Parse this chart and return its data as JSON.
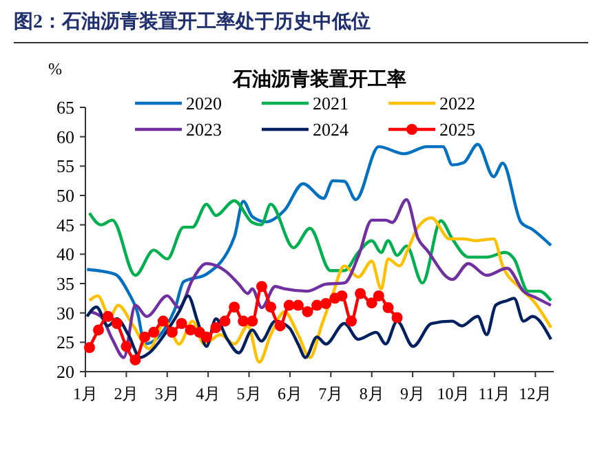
{
  "chart_data": {
    "type": "line",
    "title": "图2：石油沥青装置开工率处于历史中低位",
    "subtitle": "石油沥青装置开工率",
    "ylabel": "%",
    "xlim": [
      1,
      12.45
    ],
    "xticks": [
      {
        "value": 1,
        "label": "1月"
      },
      {
        "value": 2,
        "label": "2月"
      },
      {
        "value": 3,
        "label": "3月"
      },
      {
        "value": 4,
        "label": "4月"
      },
      {
        "value": 5,
        "label": "5月"
      },
      {
        "value": 6,
        "label": "6月"
      },
      {
        "value": 7,
        "label": "7月"
      },
      {
        "value": 8,
        "label": "8月"
      },
      {
        "value": 9,
        "label": "9月"
      },
      {
        "value": 10,
        "label": "10月"
      },
      {
        "value": 11,
        "label": "11月"
      },
      {
        "value": 12,
        "label": "12月"
      }
    ],
    "ylim": [
      20,
      65
    ],
    "yticks": [
      20,
      25,
      30,
      35,
      40,
      45,
      50,
      55,
      60,
      65
    ],
    "grid": false,
    "legend": "top",
    "line_style": "solid",
    "series": [
      {
        "name": "2020",
        "color": "#0070c0",
        "x": [
          1.04,
          1.72,
          2.05,
          2.28,
          2.45,
          3.18,
          3.4,
          3.96,
          4.64,
          4.86,
          5.08,
          5.42,
          5.87,
          6.32,
          6.82,
          7.05,
          7.33,
          7.61,
          8.17,
          8.79,
          9.35,
          9.74,
          9.97,
          10.25,
          10.59,
          10.98,
          11.2,
          11.65,
          11.93,
          12.38
        ],
        "values": [
          37.4,
          36.6,
          33.5,
          29.9,
          24.7,
          30.5,
          35.3,
          36.6,
          42.9,
          49,
          46.4,
          45.5,
          47.5,
          52,
          49.5,
          52.5,
          52.4,
          49.3,
          58.3,
          57.1,
          58.3,
          58.3,
          55.2,
          55.6,
          58.7,
          53.2,
          55.5,
          45.4,
          44.2,
          41.5
        ]
      },
      {
        "name": "2021",
        "color": "#00b050",
        "x": [
          1.1,
          1.38,
          1.66,
          2.22,
          2.67,
          3.0,
          3.4,
          3.62,
          3.96,
          4.19,
          4.64,
          5.08,
          5.3,
          5.53,
          6.09,
          6.49,
          6.99,
          7.33,
          7.67,
          8.0,
          8.23,
          8.4,
          8.62,
          8.85,
          9.24,
          9.69,
          9.97,
          10.36,
          10.81,
          11.26,
          11.48,
          11.82,
          12.1,
          12.38
        ],
        "values": [
          47,
          45,
          45.8,
          36.4,
          40.7,
          39.2,
          44.6,
          44.6,
          48.5,
          46.6,
          49.1,
          45.4,
          45,
          48.5,
          41.1,
          44.4,
          37.2,
          37.2,
          40.3,
          42.3,
          40.3,
          42.3,
          39.8,
          41.4,
          35.1,
          45.7,
          42.6,
          39.5,
          39.5,
          40.3,
          39.2,
          33.7,
          33.7,
          32.1
        ]
      },
      {
        "name": "2022",
        "color": "#ffc000",
        "x": [
          1.1,
          1.3,
          1.6,
          1.8,
          2.17,
          2.56,
          2.95,
          3.29,
          3.62,
          3.9,
          4.3,
          4.64,
          4.97,
          5.25,
          5.53,
          5.87,
          6.2,
          6.49,
          6.77,
          7.05,
          7.33,
          7.67,
          8.0,
          8.23,
          8.4,
          8.68,
          8.9,
          9.13,
          9.46,
          9.9,
          10.25,
          10.53,
          10.98,
          11.2,
          11.65,
          11.99,
          12.38
        ],
        "values": [
          32.1,
          32.9,
          29.4,
          31.3,
          27.8,
          23.9,
          28.6,
          24.7,
          28.6,
          24.7,
          26.3,
          24.7,
          27.8,
          21.6,
          26.3,
          30.2,
          26.3,
          22.4,
          27.8,
          33.3,
          38,
          36.1,
          38.8,
          34.1,
          39.2,
          38,
          41.1,
          44.6,
          46.2,
          42.6,
          42.6,
          42.3,
          42.6,
          38,
          34.1,
          31.7,
          27.5
        ]
      },
      {
        "name": "2023",
        "color": "#7030a0",
        "x": [
          1.1,
          1.38,
          1.66,
          1.94,
          2.22,
          2.5,
          3.0,
          3.29,
          3.62,
          3.96,
          4.41,
          4.75,
          4.97,
          5.08,
          5.31,
          5.64,
          5.87,
          6.43,
          6.88,
          7.33,
          7.67,
          8.0,
          8.34,
          8.5,
          8.85,
          9.13,
          9.35,
          9.97,
          10.36,
          10.81,
          11.31,
          11.71,
          12.04,
          12.38
        ],
        "values": [
          30.2,
          29.4,
          25.5,
          22.4,
          31.3,
          29.4,
          32.9,
          30.9,
          35.7,
          38.4,
          37.2,
          34.9,
          33.3,
          34.1,
          30.9,
          34.5,
          34.1,
          33.7,
          34.9,
          35.1,
          39.6,
          45.8,
          45.8,
          45.4,
          49.3,
          42.7,
          40.7,
          35.7,
          38.4,
          36.4,
          37.6,
          33.7,
          32.5,
          31.3
        ]
      },
      {
        "name": "2024",
        "color": "#002060",
        "x": [
          1.04,
          1.27,
          1.55,
          1.77,
          2.05,
          2.34,
          2.56,
          3.01,
          3.29,
          3.51,
          3.74,
          3.96,
          4.19,
          4.47,
          4.75,
          5.08,
          5.3,
          5.64,
          5.98,
          6.2,
          6.38,
          6.66,
          6.88,
          7.33,
          7.67,
          8.11,
          8.34,
          8.62,
          9.01,
          9.46,
          9.97,
          10.2,
          10.59,
          10.81,
          11.03,
          11.31,
          11.48,
          11.71,
          11.93,
          12.38
        ],
        "values": [
          29.4,
          31,
          27.8,
          29,
          26.3,
          22.4,
          23.2,
          27.1,
          30.2,
          32.9,
          28.6,
          24.3,
          29,
          25.5,
          23.2,
          27.1,
          25.2,
          28.6,
          27.5,
          24.7,
          22.4,
          25.9,
          24.7,
          28.2,
          25.5,
          26.7,
          24.7,
          28.6,
          24.3,
          28.2,
          28.6,
          27.8,
          29.4,
          26.3,
          31.3,
          32.1,
          32.5,
          28.6,
          29.4,
          25.5
        ]
      },
      {
        "name": "2025",
        "color": "#ff0000",
        "marker": "circle",
        "x": [
          1.1,
          1.32,
          1.55,
          1.77,
          2.0,
          2.22,
          2.45,
          2.67,
          2.9,
          3.12,
          3.35,
          3.57,
          3.79,
          3.96,
          4.19,
          4.41,
          4.64,
          4.86,
          5.08,
          5.31,
          5.53,
          5.76,
          5.98,
          6.2,
          6.43,
          6.66,
          6.88,
          7.1,
          7.27,
          7.5,
          7.72,
          8.0,
          8.17,
          8.4,
          8.62
        ],
        "values": [
          24.1,
          27.1,
          29.4,
          28.2,
          24.3,
          22,
          25.9,
          26.7,
          28.6,
          26.7,
          28.2,
          27.1,
          26.7,
          25.9,
          27.5,
          28.6,
          31,
          28.6,
          28.6,
          34.5,
          31,
          27.8,
          31.3,
          31.3,
          30.2,
          31.3,
          31.6,
          32.5,
          32.9,
          28.6,
          33.3,
          31.7,
          32.9,
          30.9,
          29.2
        ]
      }
    ]
  }
}
